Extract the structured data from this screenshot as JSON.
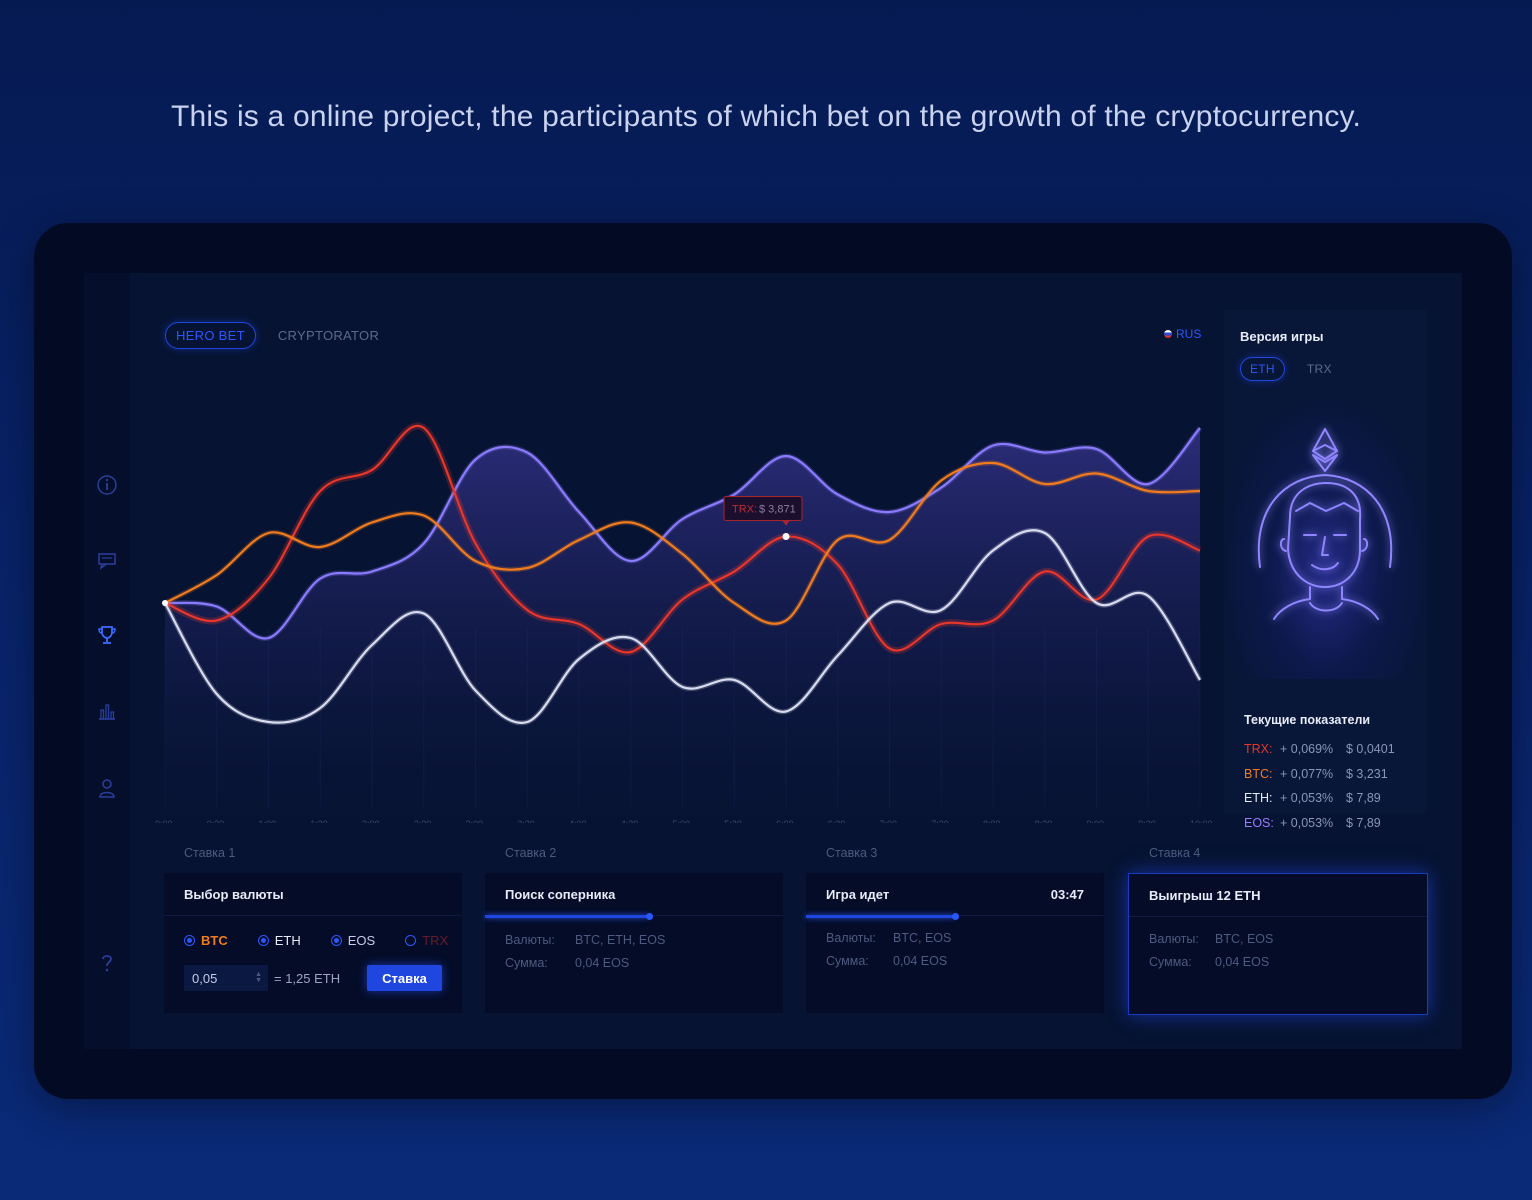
{
  "headline": "This is a online project, the participants of which bet on the growth of the cryptocurrency.",
  "nav": {
    "active_tab": "HERO BET",
    "tab2": "CRYPTORATOR",
    "language": "RUS"
  },
  "sidebar_icons": [
    "info-icon",
    "chat-icon",
    "trophy-icon",
    "bar-chart-icon",
    "user-icon",
    "help-icon"
  ],
  "colors": {
    "accent": "#2a58ff",
    "btc": "#f07c1e",
    "eth": "#ffffff",
    "eos": "#8b7cff",
    "trx": "#e8362a"
  },
  "game_version": {
    "title": "Версия игры",
    "options": [
      "ETH",
      "TRX"
    ],
    "selected": "ETH"
  },
  "current_stats": {
    "title": "Текущие показатели",
    "rows": [
      {
        "currency": "TRX:",
        "change": "+ 0,069%",
        "price": "$ 0,0401",
        "color": "#e8362a"
      },
      {
        "currency": "BTC:",
        "change": "+ 0,077%",
        "price": "$ 3,231",
        "color": "#f07c1e"
      },
      {
        "currency": "ETH:",
        "change": "+ 0,053%",
        "price": "$ 7,89",
        "color": "#e8ecf8"
      },
      {
        "currency": "EOS:",
        "change": "+ 0,053%",
        "price": "$ 7,89",
        "color": "#9a7cff"
      }
    ]
  },
  "chart_data": {
    "type": "line",
    "x": [
      "0:00",
      "0:30",
      "1:00",
      "1:30",
      "2:00",
      "2:30",
      "3:00",
      "3:30",
      "4:00",
      "4:30",
      "5:00",
      "5:30",
      "6:00",
      "6:30",
      "7:00",
      "7:30",
      "8:00",
      "8:30",
      "9:00",
      "9:30",
      "10:00"
    ],
    "ylim": [
      0,
      100
    ],
    "grid": false,
    "tooltip": {
      "label": "TRX:",
      "value": "$ 3,871",
      "x": "6:00"
    },
    "series": [
      {
        "id": "trx",
        "color": "#e8362a",
        "values": [
          50,
          45,
          57,
          82,
          88,
          100,
          67,
          48,
          44,
          36,
          51,
          59,
          69,
          61,
          37,
          44,
          45,
          59,
          51,
          69,
          65
        ]
      },
      {
        "id": "btc",
        "color": "#f07c1e",
        "values": [
          50,
          58,
          70,
          66,
          73,
          75,
          62,
          60,
          68,
          73,
          64,
          50,
          45,
          68,
          68,
          85,
          90,
          84,
          87,
          82,
          82
        ]
      },
      {
        "id": "eos",
        "color": "#8b7cff",
        "area": true,
        "values": [
          50,
          49,
          40,
          57,
          59,
          67,
          91,
          93,
          76,
          62,
          74,
          81,
          92,
          81,
          76,
          83,
          95,
          93,
          94,
          84,
          100
        ]
      },
      {
        "id": "eth",
        "color": "#d8dcef",
        "values": [
          50,
          24,
          16,
          20,
          38,
          47,
          25,
          16,
          34,
          40,
          26,
          28,
          19,
          35,
          50,
          48,
          65,
          70,
          50,
          52,
          28
        ]
      }
    ]
  },
  "steps": [
    {
      "label": "Ставка 1",
      "title": "Выбор валюты",
      "currencies": [
        {
          "name": "BTC",
          "color": "#f07c1e",
          "selected": true
        },
        {
          "name": "ETH",
          "color": "#e8ecf8",
          "selected": true
        },
        {
          "name": "EOS",
          "color": "#c5cde6",
          "selected": true
        },
        {
          "name": "TRX",
          "color": "#6a1a28",
          "selected": false
        }
      ],
      "amount": "0,05",
      "equals": "= 1,25  ETH",
      "button": "Ставка"
    },
    {
      "label": "Ставка 2",
      "title": "Поиск соперника",
      "progress": 0.55,
      "currencies_label": "Валюты:",
      "currencies_value": "BTC, ETH, EOS",
      "sum_label": "Сумма:",
      "sum_value": "0,04 EOS"
    },
    {
      "label": "Ставка 3",
      "title": "Игра идет",
      "timer": "03:47",
      "progress": 0.5,
      "currencies_label": "Валюты:",
      "currencies_value": "BTC, EOS",
      "sum_label": "Сумма:",
      "sum_value": "0,04 EOS"
    },
    {
      "label": "Ставка 4",
      "title": "Выигрыш 12 ETH",
      "currencies_label": "Валюты:",
      "currencies_value": "BTC, EOS",
      "sum_label": "Сумма:",
      "sum_value": "0,04 EOS"
    }
  ]
}
